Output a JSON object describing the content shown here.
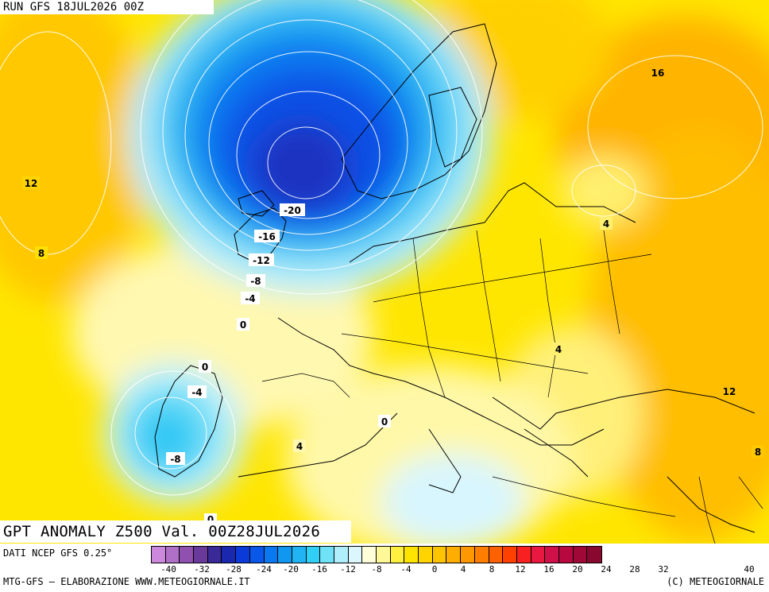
{
  "header": {
    "run": "RUN GFS 18JUL2026 00Z"
  },
  "title": "GPT ANOMALY Z500 Val. 00Z28JUL2026",
  "footer": {
    "source": "DATI NCEP GFS 0.25°",
    "credit": "MTG-GFS — ELABORAZIONE WWW.METEOGIORNALE.IT",
    "copyright": "(C) METEOGIORNALE"
  },
  "colorbar": {
    "colors": [
      "#cc88dd",
      "#b070c8",
      "#9050b0",
      "#6a3a9a",
      "#3a2a98",
      "#1a28b0",
      "#0a3ad8",
      "#0a58ea",
      "#0a78f0",
      "#1098f0",
      "#20b4f4",
      "#30d0f6",
      "#70e2f8",
      "#b0eefc",
      "#dcf6fe",
      "#fffed8",
      "#fff898",
      "#fff040",
      "#ffe400",
      "#ffd400",
      "#ffc400",
      "#ffae00",
      "#ff9800",
      "#ff7e00",
      "#ff6000",
      "#ff4000",
      "#f82020",
      "#e81840",
      "#d01048",
      "#b80840",
      "#a00838",
      "#880830"
    ],
    "ticks": [
      "-40",
      "-32",
      "-28",
      "-24",
      "-20",
      "-16",
      "-12",
      "-8",
      "-4",
      "0",
      "4",
      "8",
      "12",
      "16",
      "20",
      "24",
      "28",
      "32",
      "40"
    ]
  },
  "map_labels": [
    "12",
    "8",
    "-20",
    "-16",
    "-12",
    "-8",
    "-4",
    "0",
    "0",
    "-4",
    "-8",
    "0",
    "4",
    "0",
    "16",
    "4",
    "4",
    "12",
    "8"
  ]
}
